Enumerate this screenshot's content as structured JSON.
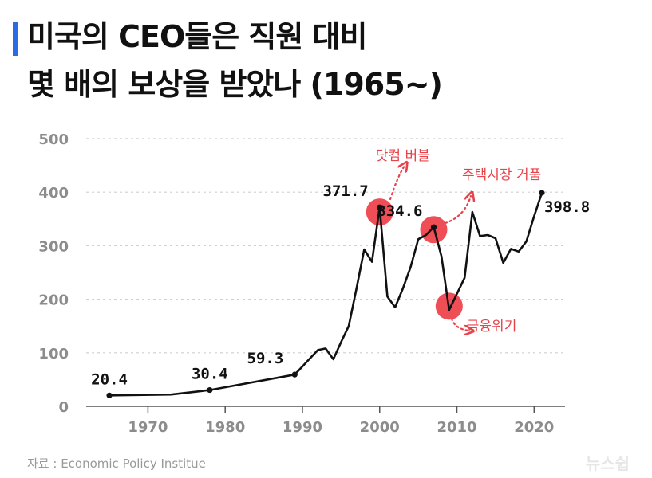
{
  "title": {
    "line1": "미국의 CEO들은 직원 대비",
    "line2": "몇 배의 보상을 받았나 (1965~)"
  },
  "source": "자료 : Economic Policy Institue",
  "logo": "뉴스쉽",
  "colors": {
    "accent": "#2b6be6",
    "line": "#111111",
    "highlight": "#ec2f3a",
    "annotation": "#e8434b",
    "tick_text": "#8c8c8c",
    "grid": "#cfcfcf"
  },
  "chart_data": {
    "type": "line",
    "ylim": [
      0,
      500
    ],
    "xlim": [
      1962,
      2024
    ],
    "yticks": [
      0,
      100,
      200,
      300,
      400,
      500
    ],
    "xticks": [
      1970,
      1980,
      1990,
      2000,
      2010,
      2020
    ],
    "grid": true,
    "x": [
      1965,
      1973,
      1978,
      1989,
      1992,
      1993,
      1994,
      1995,
      1996,
      1997,
      1998,
      1999,
      2000,
      2001,
      2002,
      2003,
      2004,
      2005,
      2006,
      2007,
      2008,
      2009,
      2010,
      2011,
      2012,
      2013,
      2014,
      2015,
      2016,
      2017,
      2018,
      2019,
      2020,
      2021
    ],
    "values": [
      20.4,
      22,
      30.4,
      59.3,
      105,
      108,
      88,
      120,
      150,
      220,
      293,
      270,
      371.7,
      205,
      185,
      220,
      260,
      312,
      320,
      334.6,
      280,
      180,
      210,
      240,
      363,
      318,
      320,
      314,
      268,
      294,
      289,
      308,
      355,
      398.8
    ],
    "labels": [
      {
        "x": 1965,
        "y": 20.4,
        "text": "20.4",
        "pos": "above"
      },
      {
        "x": 1978,
        "y": 30.4,
        "text": "30.4",
        "pos": "above"
      },
      {
        "x": 1989,
        "y": 59.3,
        "text": "59.3",
        "pos": "above-left"
      },
      {
        "x": 2000,
        "y": 371.7,
        "text": "371.7",
        "pos": "above-left"
      },
      {
        "x": 2007,
        "y": 334.6,
        "text": "334.6",
        "pos": "above-left"
      },
      {
        "x": 2021,
        "y": 398.8,
        "text": "398.8",
        "pos": "right"
      }
    ],
    "highlights": [
      {
        "x": 2000,
        "y": 363
      },
      {
        "x": 2007,
        "y": 330
      },
      {
        "x": 2009,
        "y": 187
      }
    ],
    "annotations": [
      {
        "text": "닷컴 버블",
        "x": 2003,
        "y": 460
      },
      {
        "text": "주택시장 거품",
        "x": 2015.8,
        "y": 424
      },
      {
        "text": "금융위기",
        "x": 2014.5,
        "y": 141
      }
    ]
  }
}
